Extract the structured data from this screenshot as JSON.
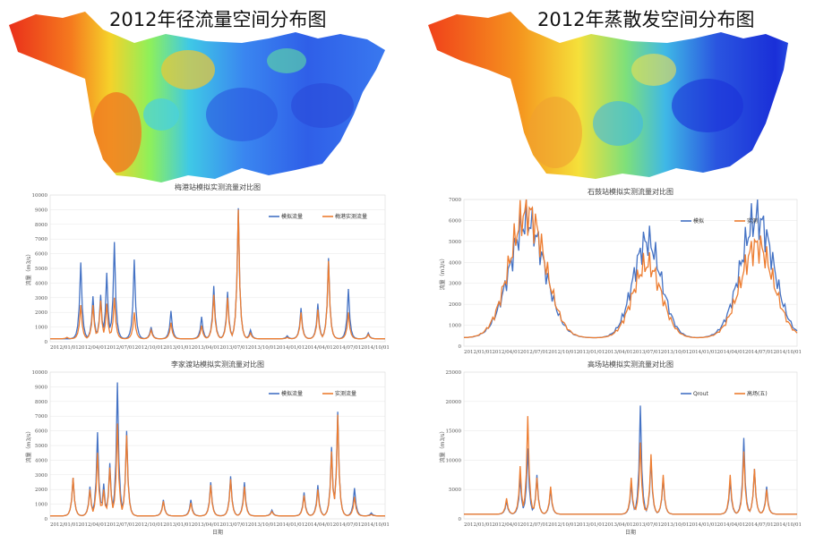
{
  "maps": [
    {
      "title": "2012年径流量空间分布图"
    },
    {
      "title": "2012年蒸散发空间分布图"
    }
  ],
  "colors": {
    "sim": "#4472c4",
    "obs": "#ed7d31"
  },
  "chart_data": [
    {
      "type": "line",
      "title": "梅港站模拟实测流量对比图",
      "ylabel": "流量（m3/s）",
      "xlabel": "",
      "ylim": [
        0,
        10000
      ],
      "yticks": [
        0,
        1000,
        2000,
        3000,
        4000,
        5000,
        6000,
        7000,
        8000,
        9000,
        10000
      ],
      "xticks": [
        "2012/01/01",
        "2012/04/01",
        "2012/07/01",
        "2012/10/01",
        "2013/01/01",
        "2013/04/01",
        "2013/07/01",
        "2013/10/01",
        "2014/01/01",
        "2014/04/01",
        "2014/07/01",
        "2014/10/01"
      ],
      "legend_position": "top-right",
      "series": [
        {
          "name": "模拟流量",
          "color": "#4472c4"
        },
        {
          "name": "梅港实测流量",
          "color": "#ed7d31"
        }
      ],
      "peaks": [
        [
          0.05,
          0,
          300
        ],
        [
          0.09,
          5400,
          2500
        ],
        [
          0.13,
          3100,
          2500
        ],
        [
          0.15,
          3200,
          2800
        ],
        [
          0.17,
          4700,
          2600
        ],
        [
          0.19,
          6800,
          3000
        ],
        [
          0.25,
          5600,
          2000
        ],
        [
          0.3,
          1000,
          800
        ],
        [
          0.36,
          2100,
          1300
        ],
        [
          0.45,
          1700,
          1100
        ],
        [
          0.49,
          3800,
          3200
        ],
        [
          0.53,
          3400,
          3000
        ],
        [
          0.56,
          9100,
          9000
        ],
        [
          0.6,
          800,
          600
        ],
        [
          0.71,
          400,
          300
        ],
        [
          0.75,
          2300,
          2000
        ],
        [
          0.8,
          2600,
          2200
        ],
        [
          0.83,
          5700,
          5500
        ],
        [
          0.89,
          3600,
          2000
        ],
        [
          0.95,
          600,
          500
        ]
      ]
    },
    {
      "type": "line",
      "title": "李家渡站模拟实测流量对比图",
      "ylabel": "流量（m3/s）",
      "xlabel": "日期",
      "ylim": [
        0,
        10000
      ],
      "yticks": [
        0,
        1000,
        2000,
        3000,
        4000,
        5000,
        6000,
        7000,
        8000,
        9000,
        10000
      ],
      "xticks": [
        "2012/01/01",
        "2012/04/01",
        "2012/07/01",
        "2012/10/01",
        "2013/01/01",
        "2013/04/01",
        "2013/07/01",
        "2013/10/01",
        "2014/01/01",
        "2014/04/01",
        "2014/07/01",
        "2014/10/01"
      ],
      "legend_position": "top-right",
      "series": [
        {
          "name": "模拟流量",
          "color": "#4472c4"
        },
        {
          "name": "实测流量",
          "color": "#ed7d31"
        }
      ],
      "peaks": [
        [
          0.07,
          2800,
          2800
        ],
        [
          0.12,
          2200,
          2000
        ],
        [
          0.14,
          5900,
          4500
        ],
        [
          0.16,
          2400,
          2000
        ],
        [
          0.18,
          3800,
          3500
        ],
        [
          0.2,
          9300,
          6500
        ],
        [
          0.23,
          6000,
          5700
        ],
        [
          0.34,
          1300,
          1200
        ],
        [
          0.42,
          1300,
          1100
        ],
        [
          0.48,
          2500,
          2300
        ],
        [
          0.54,
          2900,
          2700
        ],
        [
          0.58,
          2500,
          2200
        ],
        [
          0.66,
          600,
          500
        ],
        [
          0.76,
          1800,
          1600
        ],
        [
          0.8,
          2300,
          2000
        ],
        [
          0.84,
          4900,
          4600
        ],
        [
          0.86,
          7300,
          7100
        ],
        [
          0.91,
          2100,
          1500
        ],
        [
          0.96,
          400,
          300
        ]
      ]
    },
    {
      "type": "line",
      "title": "石鼓站模拟实测流量对比图",
      "ylabel": "流量（m3/s）",
      "xlabel": "",
      "ylim": [
        0,
        7000
      ],
      "yticks": [
        0,
        1000,
        2000,
        3000,
        4000,
        5000,
        6000,
        7000
      ],
      "xticks": [
        "2012/01/01",
        "2012/04/01",
        "2012/07/01",
        "2012/10/01",
        "2013/01/01",
        "2013/04/01",
        "2013/07/01",
        "2013/10/01",
        "2014/01/01",
        "2014/04/01",
        "2014/07/01",
        "2014/10/01"
      ],
      "legend_position": "top-right",
      "series": [
        {
          "name": "模拟",
          "color": "#4472c4"
        },
        {
          "name": "实测",
          "color": "#ed7d31"
        }
      ],
      "waves": [
        [
          0.19,
          5900,
          6400,
          0.075
        ],
        [
          0.55,
          5000,
          3900,
          0.06
        ],
        [
          0.88,
          6100,
          4800,
          0.07
        ]
      ],
      "base": 400
    },
    {
      "type": "line",
      "title": "高场站模拟实测流量对比图",
      "ylabel": "流量（m3/s）",
      "xlabel": "日期",
      "ylim": [
        0,
        25000
      ],
      "yticks": [
        0,
        5000,
        10000,
        15000,
        20000,
        25000
      ],
      "xticks": [
        "2012/01/01",
        "2012/04/01",
        "2012/07/01",
        "2012/10/01",
        "2013/01/01",
        "2013/04/01",
        "2013/07/01",
        "2013/10/01",
        "2014/01/01",
        "2014/04/01",
        "2014/07/01",
        "2014/10/01"
      ],
      "legend_position": "top-right",
      "series": [
        {
          "name": "Qrout",
          "color": "#4472c4"
        },
        {
          "name": "高场(五)",
          "color": "#ed7d31"
        }
      ],
      "peaks": [
        [
          0.13,
          3000,
          3500
        ],
        [
          0.17,
          7000,
          9000
        ],
        [
          0.19,
          12000,
          17500
        ],
        [
          0.22,
          7500,
          7000
        ],
        [
          0.26,
          5000,
          5500
        ],
        [
          0.5,
          6000,
          7000
        ],
        [
          0.53,
          19300,
          13000
        ],
        [
          0.56,
          10000,
          11000
        ],
        [
          0.6,
          7000,
          7500
        ],
        [
          0.8,
          6500,
          7500
        ],
        [
          0.84,
          13800,
          11500
        ],
        [
          0.87,
          8500,
          8500
        ],
        [
          0.91,
          5500,
          5000
        ]
      ],
      "base": 800
    }
  ]
}
